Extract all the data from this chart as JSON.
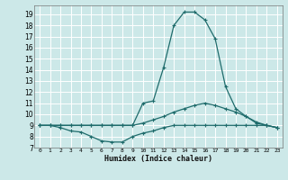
{
  "xlabel": "Humidex (Indice chaleur)",
  "bg_color": "#cce8e8",
  "grid_color": "#ffffff",
  "line_color": "#1e6b6b",
  "xlim": [
    -0.5,
    23.5
  ],
  "ylim": [
    7.0,
    19.8
  ],
  "yticks": [
    7,
    8,
    9,
    10,
    11,
    12,
    13,
    14,
    15,
    16,
    17,
    18,
    19
  ],
  "xticks": [
    0,
    1,
    2,
    3,
    4,
    5,
    6,
    7,
    8,
    9,
    10,
    11,
    12,
    13,
    14,
    15,
    16,
    17,
    18,
    19,
    20,
    21,
    22,
    23
  ],
  "curve1_x": [
    0,
    1,
    2,
    3,
    4,
    5,
    6,
    7,
    8,
    9,
    10,
    11,
    12,
    13,
    14,
    15,
    16,
    17,
    18,
    19,
    20,
    21,
    22,
    23
  ],
  "curve1_y": [
    9.0,
    9.0,
    9.0,
    9.0,
    9.0,
    9.0,
    9.0,
    9.0,
    9.0,
    9.0,
    9.2,
    9.5,
    9.8,
    10.2,
    10.5,
    10.8,
    11.0,
    10.8,
    10.5,
    10.2,
    9.8,
    9.3,
    9.0,
    8.8
  ],
  "curve2_x": [
    0,
    1,
    2,
    3,
    4,
    5,
    6,
    7,
    8,
    9,
    10,
    11,
    12,
    13,
    14,
    15,
    16,
    17,
    18,
    19,
    20,
    21,
    22,
    23
  ],
  "curve2_y": [
    9.0,
    9.0,
    8.8,
    8.5,
    8.4,
    8.0,
    7.6,
    7.5,
    7.5,
    8.0,
    8.3,
    8.5,
    8.8,
    9.0,
    9.0,
    9.0,
    9.0,
    9.0,
    9.0,
    9.0,
    9.0,
    9.0,
    9.0,
    8.8
  ],
  "curve3_x": [
    0,
    1,
    2,
    3,
    4,
    5,
    6,
    7,
    8,
    9,
    10,
    11,
    12,
    13,
    14,
    15,
    16,
    17,
    18,
    19,
    20,
    21,
    22,
    23
  ],
  "curve3_y": [
    9.0,
    9.0,
    9.0,
    9.0,
    9.0,
    9.0,
    9.0,
    9.0,
    9.0,
    9.0,
    11.0,
    11.2,
    14.2,
    18.0,
    19.2,
    19.2,
    18.5,
    16.8,
    12.5,
    10.5,
    9.8,
    9.2,
    9.0,
    8.8
  ]
}
